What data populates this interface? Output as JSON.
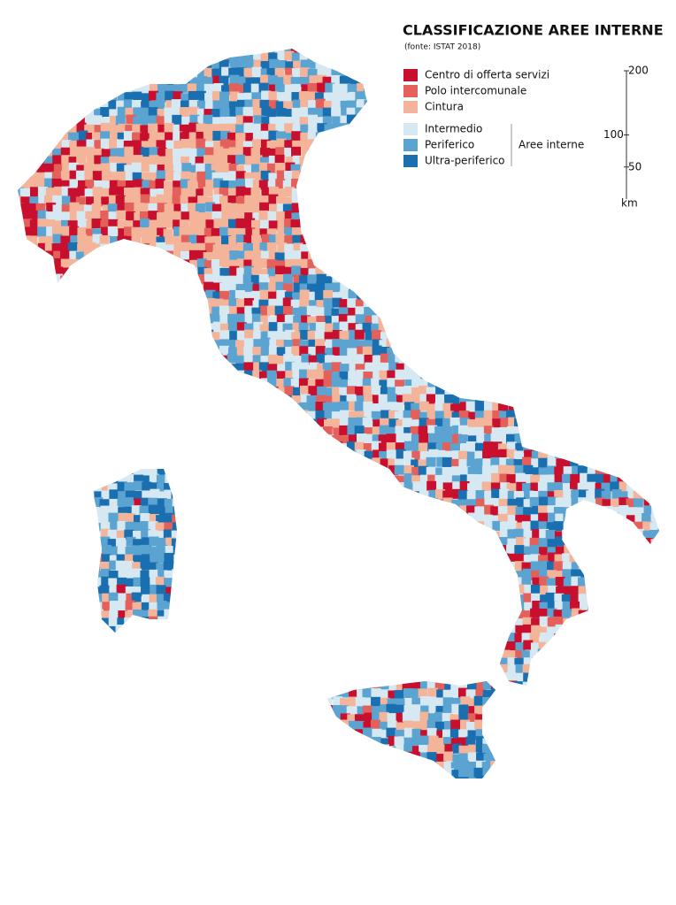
{
  "title": "CLASSIFICAZIONE AREE INTERNE",
  "subtitle": "(fonte: ISTAT 2018)",
  "legend": {
    "items": [
      {
        "label": "Centro di offerta servizi",
        "color": "#c8102e"
      },
      {
        "label": "Polo intercomunale",
        "color": "#e4605a"
      },
      {
        "label": "Cintura",
        "color": "#f4b49a"
      },
      {
        "label": "Intermedio",
        "color": "#d6e8f2"
      },
      {
        "label": "Periferico",
        "color": "#5ba3d0"
      },
      {
        "label": "Ultra-periferico",
        "color": "#1a6fb0"
      }
    ],
    "group_label": "Aree interne"
  },
  "scale": {
    "ticks": [
      200,
      100,
      50
    ],
    "unit": "km"
  }
}
